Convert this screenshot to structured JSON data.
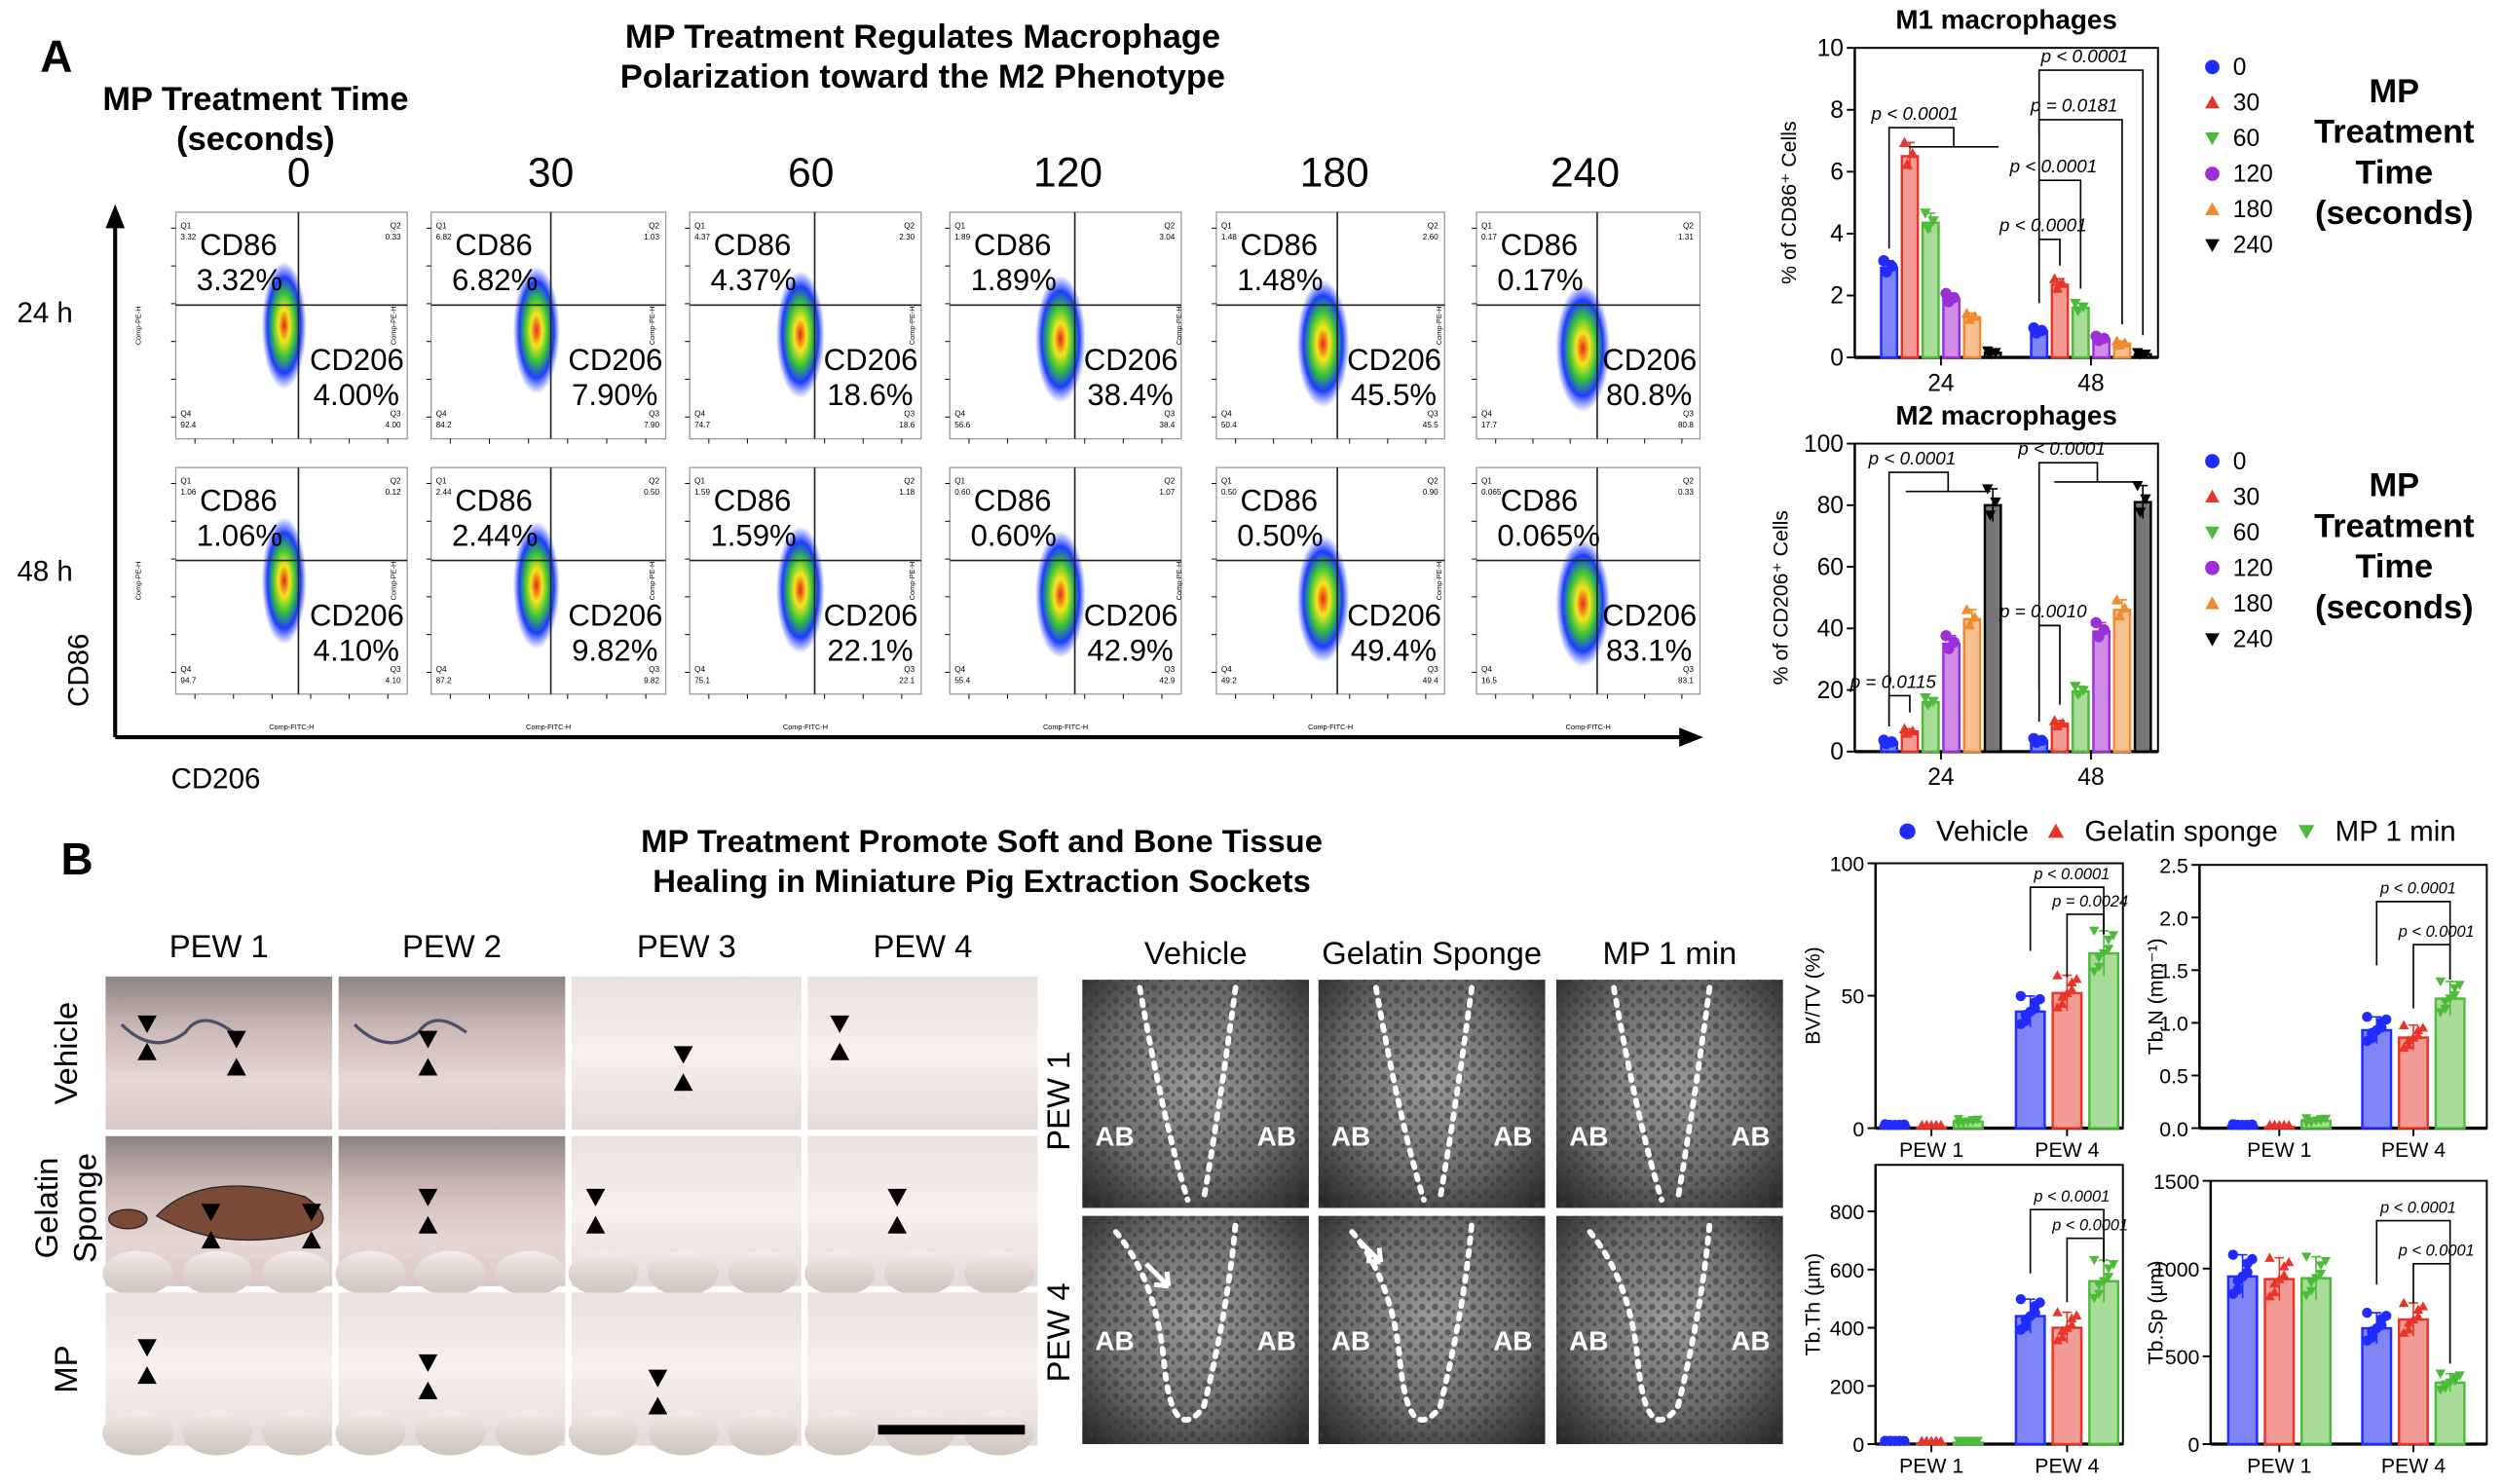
{
  "panel_a": {
    "label": "A",
    "title": [
      "MP Treatment Regulates Macrophage",
      "Polarization toward the M2 Phenotype"
    ],
    "time_heading": [
      "MP Treatment Time",
      "(seconds)"
    ],
    "columns": [
      "0",
      "30",
      "60",
      "120",
      "180",
      "240"
    ],
    "rows": [
      "24 h",
      "48 h"
    ],
    "y_axis": "CD86",
    "x_axis": "CD206",
    "plot_y_axis": "Comp-PE-H",
    "plot_x_axis": "Comp-FITC-H",
    "quadrant_names": [
      "Q1",
      "Q2",
      "Q3",
      "Q4"
    ],
    "marker_labels": {
      "m1": "CD86",
      "m2": "CD206"
    },
    "plots": [
      [
        {
          "q1": "3.32",
          "q2": "0.33",
          "q3": "4.00",
          "q4": "92.4",
          "cd86": "3.32%",
          "cd206": "4.00%"
        },
        {
          "q1": "6.82",
          "q2": "1.03",
          "q3": "7.90",
          "q4": "84.2",
          "cd86": "6.82%",
          "cd206": "7.90%"
        },
        {
          "q1": "4.37",
          "q2": "2.30",
          "q3": "18.6",
          "q4": "74.7",
          "cd86": "4.37%",
          "cd206": "18.6%"
        },
        {
          "q1": "1.89",
          "q2": "3.04",
          "q3": "38.4",
          "q4": "56.6",
          "cd86": "1.89%",
          "cd206": "38.4%"
        },
        {
          "q1": "1.48",
          "q2": "2.60",
          "q3": "45.5",
          "q4": "50.4",
          "cd86": "1.48%",
          "cd206": "45.5%"
        },
        {
          "q1": "0.17",
          "q2": "1.31",
          "q3": "80.8",
          "q4": "17.7",
          "cd86": "0.17%",
          "cd206": "80.8%"
        }
      ],
      [
        {
          "q1": "1.06",
          "q2": "0.12",
          "q3": "4.10",
          "q4": "94.7",
          "cd86": "1.06%",
          "cd206": "4.10%"
        },
        {
          "q1": "2.44",
          "q2": "0.50",
          "q3": "9.82",
          "q4": "87.2",
          "cd86": "2.44%",
          "cd206": "9.82%"
        },
        {
          "q1": "1.59",
          "q2": "1.18",
          "q3": "22.1",
          "q4": "75.1",
          "cd86": "1.59%",
          "cd206": "22.1%"
        },
        {
          "q1": "0.60",
          "q2": "1.07",
          "q3": "42.9",
          "q4": "55.4",
          "cd86": "0.60%",
          "cd206": "42.9%"
        },
        {
          "q1": "0.50",
          "q2": "0.90",
          "q3": "49.4",
          "q4": "49.2",
          "cd86": "0.50%",
          "cd206": "49.4%"
        },
        {
          "q1": "0.065",
          "q2": "0.33",
          "q3": "83.1",
          "q4": "16.5",
          "cd86": "0.065%",
          "cd206": "83.1%"
        }
      ]
    ],
    "legend_heading": [
      "MP",
      "Treatment",
      "Time",
      "(seconds)"
    ]
  },
  "panel_b": {
    "label": "B",
    "title": [
      "MP Treatment Promote Soft and Bone Tissue",
      "Healing in Miniature Pig Extraction Sockets"
    ],
    "photo_columns": [
      "PEW 1",
      "PEW 2",
      "PEW 3",
      "PEW 4"
    ],
    "photo_rows": [
      [
        "Vehicle"
      ],
      [
        "Gelatin",
        "Sponge"
      ],
      [
        "MP"
      ]
    ],
    "ct_columns": [
      "Vehicle",
      "Gelatin Sponge",
      "MP 1 min"
    ],
    "ct_rows": [
      "PEW 1",
      "PEW 4"
    ],
    "ct_region_label": "AB",
    "legend": [
      "Vehicle",
      "Gelatin sponge",
      "MP 1 min"
    ]
  },
  "colors": {
    "series_0": "#1f2bff",
    "series_30": "#e8352a",
    "series_60": "#4dbb3a",
    "series_120": "#9b30d9",
    "series_180": "#f08a2e",
    "series_240": "#000000"
  },
  "chart_data": [
    {
      "type": "bar",
      "title": "M1 macrophages",
      "ylabel": "% of CD86⁺ Cells",
      "xlabel": "",
      "categories": [
        "24",
        "48"
      ],
      "ylim": [
        0,
        10
      ],
      "yticks": [
        "0",
        "2",
        "4",
        "6",
        "8",
        "10"
      ],
      "legend": "right",
      "series": [
        {
          "name": "0",
          "values": [
            2.9,
            0.85
          ],
          "marker": "circle",
          "color": "#1f2bff",
          "fill": "#7f85f5"
        },
        {
          "name": "30",
          "values": [
            6.5,
            2.35
          ],
          "marker": "triangle-up",
          "color": "#e8352a",
          "fill": "#f29a94"
        },
        {
          "name": "60",
          "values": [
            4.35,
            1.6
          ],
          "marker": "triangle-down",
          "color": "#4dbb3a",
          "fill": "#a8dc98"
        },
        {
          "name": "120",
          "values": [
            1.9,
            0.6
          ],
          "marker": "circle",
          "color": "#9b30d9",
          "fill": "#d08de8"
        },
        {
          "name": "180",
          "values": [
            1.3,
            0.45
          ],
          "marker": "triangle-up",
          "color": "#f08a2e",
          "fill": "#f7c092"
        },
        {
          "name": "240",
          "values": [
            0.15,
            0.1
          ],
          "marker": "triangle-down",
          "color": "#000000",
          "fill": "#777777"
        }
      ],
      "annotations": [
        {
          "group": 0,
          "from": 0,
          "to": [
            1,
            5
          ],
          "text": "p < 0.0001"
        },
        {
          "group": 1,
          "from": 0,
          "to": 5,
          "text": "p < 0.0001"
        },
        {
          "group": 1,
          "from": 0,
          "to": 4,
          "text": "p = 0.0181"
        },
        {
          "group": 1,
          "from": 0,
          "to": 2,
          "text": "p < 0.0001"
        },
        {
          "group": 1,
          "from": 0,
          "to": 1,
          "text": "p < 0.0001"
        }
      ]
    },
    {
      "type": "bar",
      "title": "M2 macrophages",
      "ylabel": "% of CD206⁺ Cells",
      "xlabel": "",
      "categories": [
        "24",
        "48"
      ],
      "ylim": [
        0,
        100
      ],
      "yticks": [
        "0",
        "20",
        "40",
        "60",
        "80",
        "100"
      ],
      "legend": "right",
      "series": [
        {
          "name": "0",
          "values": [
            3,
            3.5
          ],
          "marker": "circle",
          "color": "#1f2bff",
          "fill": "#7f85f5"
        },
        {
          "name": "30",
          "values": [
            6.5,
            9
          ],
          "marker": "triangle-up",
          "color": "#e8352a",
          "fill": "#f29a94"
        },
        {
          "name": "60",
          "values": [
            16,
            19.5
          ],
          "marker": "triangle-down",
          "color": "#4dbb3a",
          "fill": "#a8dc98"
        },
        {
          "name": "120",
          "values": [
            35,
            39
          ],
          "marker": "circle",
          "color": "#9b30d9",
          "fill": "#d08de8"
        },
        {
          "name": "180",
          "values": [
            43,
            46
          ],
          "marker": "triangle-up",
          "color": "#f08a2e",
          "fill": "#f7c092"
        },
        {
          "name": "240",
          "values": [
            80,
            81
          ],
          "marker": "triangle-down",
          "color": "#000000",
          "fill": "#777777"
        }
      ],
      "annotations": [
        {
          "group": 0,
          "from": 0,
          "to": [
            1,
            5
          ],
          "text": "p < 0.0001"
        },
        {
          "group": 0,
          "from": 0,
          "to": 1,
          "text": "p = 0.0115"
        },
        {
          "group": 1,
          "from": 0,
          "to": [
            1,
            5
          ],
          "text": "p < 0.0001"
        },
        {
          "group": 1,
          "from": 0,
          "to": 1,
          "text": "p = 0.0010"
        }
      ]
    },
    {
      "type": "bar",
      "title": "",
      "ylabel": "BV/TV (%)",
      "xlabel": "",
      "categories": [
        "PEW 1",
        "PEW 4"
      ],
      "ylim": [
        0,
        100
      ],
      "yticks": [
        "0",
        "50",
        "100"
      ],
      "legend": "top",
      "series": [
        {
          "name": "Vehicle",
          "values": [
            0.8,
            44
          ],
          "marker": "circle",
          "color": "#1f2bff",
          "fill": "#7f85f5"
        },
        {
          "name": "Gelatin sponge",
          "values": [
            0.3,
            51
          ],
          "marker": "triangle-up",
          "color": "#e8352a",
          "fill": "#f29a94"
        },
        {
          "name": "MP 1 min",
          "values": [
            2.5,
            66
          ],
          "marker": "triangle-down",
          "color": "#4dbb3a",
          "fill": "#a8dc98"
        }
      ],
      "annotations": [
        {
          "group": 1,
          "from": 0,
          "to": 2,
          "text": "p < 0.0001"
        },
        {
          "group": 1,
          "from": 1,
          "to": 2,
          "text": "p = 0.0024"
        }
      ]
    },
    {
      "type": "bar",
      "title": "",
      "ylabel": "Tb.N (mm⁻¹)",
      "xlabel": "",
      "categories": [
        "PEW 1",
        "PEW 4"
      ],
      "ylim": [
        0,
        2.5
      ],
      "yticks": [
        "0.0",
        "0.5",
        "1.0",
        "1.5",
        "2.0",
        "2.5"
      ],
      "legend": "top",
      "series": [
        {
          "name": "Vehicle",
          "values": [
            0.02,
            0.93
          ],
          "marker": "circle",
          "color": "#1f2bff",
          "fill": "#7f85f5"
        },
        {
          "name": "Gelatin sponge",
          "values": [
            0.01,
            0.86
          ],
          "marker": "triangle-up",
          "color": "#e8352a",
          "fill": "#f29a94"
        },
        {
          "name": "MP 1 min",
          "values": [
            0.07,
            1.23
          ],
          "marker": "triangle-down",
          "color": "#4dbb3a",
          "fill": "#a8dc98"
        }
      ],
      "annotations": [
        {
          "group": 1,
          "from": 0,
          "to": 2,
          "text": "p < 0.0001"
        },
        {
          "group": 1,
          "from": 1,
          "to": 2,
          "text": "p < 0.0001"
        }
      ]
    },
    {
      "type": "bar",
      "title": "",
      "ylabel": "Tb.Th (µm)",
      "xlabel": "",
      "categories": [
        "PEW 1",
        "PEW 4"
      ],
      "ylim": [
        0,
        960
      ],
      "yticks": [
        "0",
        "200",
        "400",
        "600",
        "800"
      ],
      "legend": "top",
      "series": [
        {
          "name": "Vehicle",
          "values": [
            3,
            440
          ],
          "marker": "circle",
          "color": "#1f2bff",
          "fill": "#7f85f5"
        },
        {
          "name": "Gelatin sponge",
          "values": [
            2,
            400
          ],
          "marker": "triangle-up",
          "color": "#e8352a",
          "fill": "#f29a94"
        },
        {
          "name": "MP 1 min",
          "values": [
            5,
            560
          ],
          "marker": "triangle-down",
          "color": "#4dbb3a",
          "fill": "#a8dc98"
        }
      ],
      "annotations": [
        {
          "group": 1,
          "from": 0,
          "to": 2,
          "text": "p < 0.0001"
        },
        {
          "group": 1,
          "from": 1,
          "to": 2,
          "text": "p < 0.0001"
        }
      ]
    },
    {
      "type": "bar",
      "title": "",
      "ylabel": "Tb.Sp (µm)",
      "xlabel": "",
      "categories": [
        "PEW 1",
        "PEW 4"
      ],
      "ylim": [
        0,
        1500
      ],
      "yticks": [
        "0",
        "500",
        "1000",
        "1500"
      ],
      "legend": "top",
      "series": [
        {
          "name": "Vehicle",
          "values": [
            955,
            660
          ],
          "marker": "circle",
          "color": "#1f2bff",
          "fill": "#7f85f5"
        },
        {
          "name": "Gelatin sponge",
          "values": [
            940,
            710
          ],
          "marker": "triangle-up",
          "color": "#e8352a",
          "fill": "#f29a94"
        },
        {
          "name": "MP 1 min",
          "values": [
            945,
            350
          ],
          "marker": "triangle-down",
          "color": "#4dbb3a",
          "fill": "#a8dc98"
        }
      ],
      "annotations": [
        {
          "group": 1,
          "from": 0,
          "to": 2,
          "text": "p < 0.0001"
        },
        {
          "group": 1,
          "from": 1,
          "to": 2,
          "text": "p < 0.0001"
        }
      ]
    }
  ]
}
